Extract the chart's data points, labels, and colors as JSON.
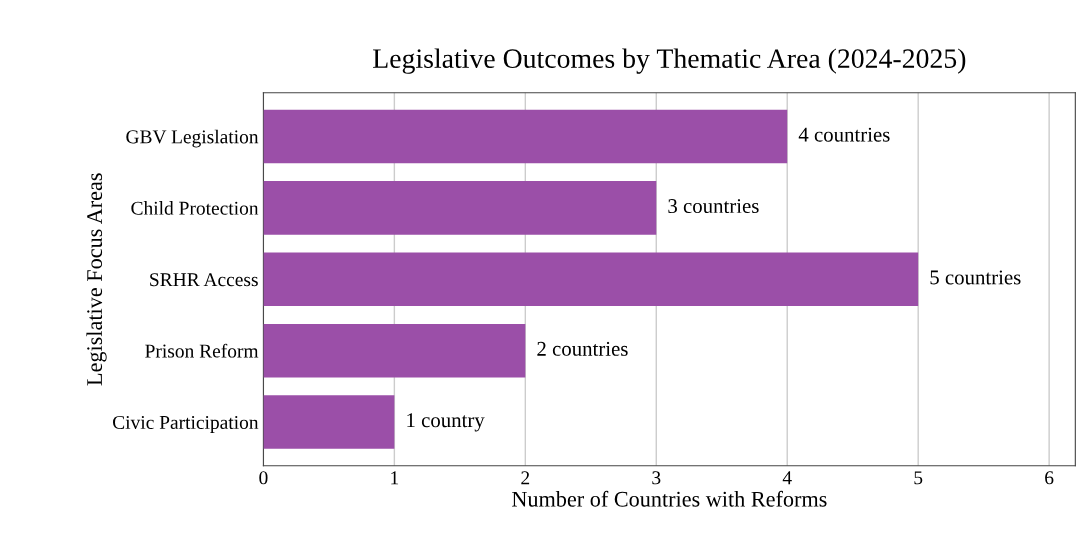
{
  "chart_data": {
    "type": "bar",
    "orientation": "horizontal",
    "title": "Legislative Outcomes by Thematic Area (2024-2025)",
    "xlabel": "Number of Countries with Reforms",
    "ylabel": "Legislative Focus Areas",
    "categories": [
      "GBV Legislation",
      "Child Protection",
      "SRHR Access",
      "Prison Reform",
      "Civic Participation"
    ],
    "values": [
      4,
      3,
      5,
      2,
      1
    ],
    "value_labels": [
      "4 countries",
      "3 countries",
      "5 countries",
      "2 countries",
      "1 country"
    ],
    "color": "#9b4fa8",
    "xlim": [
      0,
      6.2
    ],
    "xticks": [
      0,
      1,
      2,
      3,
      4,
      5,
      6
    ],
    "grid": "x",
    "legend": false
  }
}
